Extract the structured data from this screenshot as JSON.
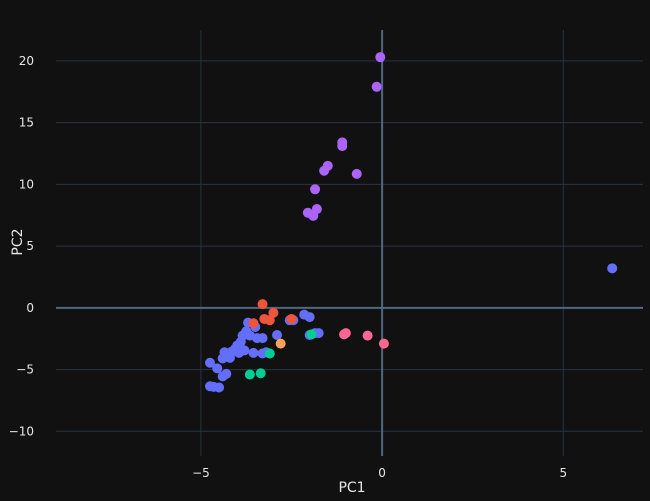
{
  "chart_data": {
    "type": "scatter",
    "title": "",
    "xlabel": "PC1",
    "ylabel": "PC2",
    "xlim": [
      -9,
      7.2
    ],
    "ylim": [
      -12,
      22.5
    ],
    "xticks": [
      -5,
      0,
      5
    ],
    "xtick_labels": [
      "−5",
      "0",
      "5"
    ],
    "yticks": [
      -10,
      -5,
      0,
      5,
      10,
      15,
      20
    ],
    "ytick_labels": [
      "−10",
      "−5",
      "0",
      "5",
      "10",
      "15",
      "20"
    ],
    "grid": true,
    "legend": "none",
    "colors": {
      "background": "#111111",
      "grid": "#283442",
      "zeroline": "#506784",
      "text": "#e6e6e6"
    },
    "series": [
      {
        "color": "#636efa",
        "points": [
          [
            6.35,
            3.2
          ],
          [
            -4.75,
            -6.35
          ],
          [
            -4.65,
            -6.4
          ],
          [
            -4.5,
            -6.45
          ],
          [
            -4.4,
            -5.55
          ],
          [
            -4.3,
            -5.35
          ],
          [
            -4.75,
            -4.45
          ],
          [
            -4.55,
            -4.9
          ],
          [
            -4.4,
            -4.1
          ],
          [
            -4.35,
            -3.6
          ],
          [
            -4.2,
            -4.05
          ],
          [
            -4.15,
            -3.55
          ],
          [
            -4.05,
            -3.3
          ],
          [
            -4.0,
            -3.05
          ],
          [
            -3.95,
            -3.65
          ],
          [
            -3.9,
            -2.75
          ],
          [
            -3.8,
            -3.45
          ],
          [
            -3.85,
            -2.25
          ],
          [
            -3.75,
            -1.9
          ],
          [
            -3.65,
            -2.25
          ],
          [
            -3.55,
            -3.65
          ],
          [
            -3.5,
            -1.55
          ],
          [
            -3.45,
            -2.45
          ],
          [
            -3.7,
            -1.2
          ],
          [
            -3.3,
            -3.7
          ],
          [
            -3.3,
            -2.45
          ],
          [
            -3.2,
            -3.6
          ],
          [
            -2.9,
            -2.2
          ],
          [
            -2.55,
            -1.0
          ],
          [
            -2.45,
            -1.0
          ],
          [
            -2.15,
            -0.55
          ],
          [
            -2.0,
            -0.75
          ],
          [
            -1.85,
            -2.05
          ],
          [
            -2.0,
            -2.2
          ],
          [
            -1.75,
            -2.05
          ]
        ]
      },
      {
        "color": "#ef553b",
        "points": [
          [
            -3.3,
            0.3
          ],
          [
            -3.0,
            -0.4
          ],
          [
            -3.25,
            -0.9
          ],
          [
            -3.1,
            -1.0
          ],
          [
            -2.5,
            -0.9
          ],
          [
            -3.55,
            -1.25
          ]
        ]
      },
      {
        "color": "#00cc96",
        "points": [
          [
            -3.1,
            -3.7
          ],
          [
            -3.65,
            -5.4
          ],
          [
            -3.35,
            -5.3
          ],
          [
            -1.95,
            -2.15
          ]
        ]
      },
      {
        "color": "#ab63fa",
        "points": [
          [
            -0.05,
            20.3
          ],
          [
            -0.15,
            17.9
          ],
          [
            -1.1,
            13.4
          ],
          [
            -1.1,
            13.1
          ],
          [
            -1.5,
            11.5
          ],
          [
            -1.6,
            11.1
          ],
          [
            -0.7,
            10.85
          ],
          [
            -1.85,
            9.6
          ],
          [
            -1.8,
            8.0
          ],
          [
            -2.05,
            7.7
          ],
          [
            -1.9,
            7.45
          ]
        ]
      },
      {
        "color": "#ffa15a",
        "points": [
          [
            -2.8,
            -2.9
          ]
        ]
      },
      {
        "color": "#ff6692",
        "points": [
          [
            -1.05,
            -2.15
          ],
          [
            -1.0,
            -2.05
          ],
          [
            -0.4,
            -2.25
          ],
          [
            0.05,
            -2.9
          ]
        ]
      }
    ]
  }
}
